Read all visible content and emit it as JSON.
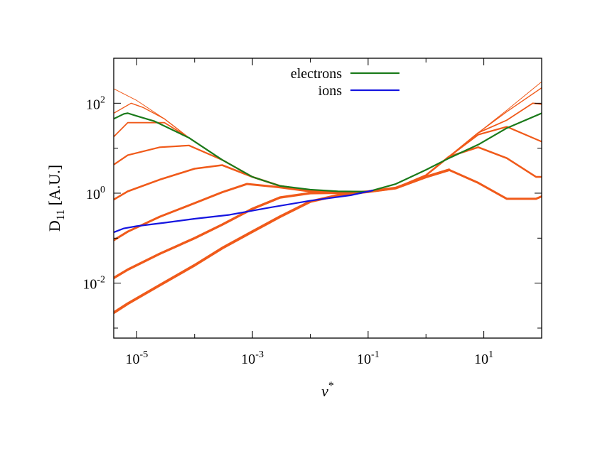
{
  "chart_data": {
    "type": "line",
    "xlabel": "ν*",
    "ylabel": "D11 [A.U.]",
    "xscale": "log",
    "yscale": "log",
    "xlim": [
      4e-06,
      100
    ],
    "ylim": [
      0.0006,
      1000
    ],
    "grid": false,
    "legend_position": "top-center",
    "x_ticks": [
      {
        "value": 1e-05,
        "base": "10",
        "exp": "-5"
      },
      {
        "value": 0.001,
        "base": "10",
        "exp": "-3"
      },
      {
        "value": 0.1,
        "base": "10",
        "exp": "-1"
      },
      {
        "value": 10,
        "base": "10",
        "exp": "1"
      }
    ],
    "y_ticks": [
      {
        "value": 0.01,
        "base": "10",
        "exp": "-2"
      },
      {
        "value": 1,
        "base": "10",
        "exp": "0"
      },
      {
        "value": 100,
        "base": "10",
        "exp": "2"
      }
    ],
    "series": [
      {
        "name": "electrons",
        "color": "#1a7a1a",
        "width": 2.2,
        "points": [
          [
            4e-06,
            45
          ],
          [
            6e-06,
            58
          ],
          [
            7e-06,
            60
          ],
          [
            1e-05,
            52
          ],
          [
            2e-05,
            40
          ],
          [
            8e-05,
            17
          ],
          [
            0.0003,
            5.5
          ],
          [
            0.001,
            2.3
          ],
          [
            0.003,
            1.45
          ],
          [
            0.01,
            1.2
          ],
          [
            0.03,
            1.1
          ],
          [
            0.1,
            1.08
          ],
          [
            0.3,
            1.6
          ],
          [
            1,
            3.3
          ],
          [
            2.5,
            6.0
          ],
          [
            8,
            12
          ],
          [
            25,
            28
          ],
          [
            100,
            60
          ]
        ]
      },
      {
        "name": "ions",
        "color": "#1515e0",
        "width": 2.2,
        "points": [
          [
            4e-06,
            0.135
          ],
          [
            6e-06,
            0.165
          ],
          [
            1e-05,
            0.185
          ],
          [
            3e-05,
            0.22
          ],
          [
            0.0001,
            0.27
          ],
          [
            0.0004,
            0.33
          ],
          [
            0.002,
            0.48
          ],
          [
            0.01,
            0.68
          ],
          [
            0.05,
            0.9
          ],
          [
            0.12,
            1.15
          ]
        ]
      },
      {
        "name": "",
        "color": "#f05a1a",
        "width": 1.0,
        "points": [
          [
            4e-06,
            210
          ],
          [
            1e-05,
            115
          ],
          [
            3e-05,
            45
          ],
          [
            8e-05,
            17
          ],
          [
            0.0003,
            5.5
          ],
          [
            0.001,
            2.3
          ],
          [
            0.003,
            1.45
          ],
          [
            0.01,
            1.15
          ],
          [
            0.03,
            1.08
          ],
          [
            0.1,
            1.08
          ],
          [
            0.3,
            1.3
          ],
          [
            1,
            2.5
          ],
          [
            2.5,
            6.5
          ],
          [
            8,
            22
          ],
          [
            25,
            70
          ],
          [
            100,
            300
          ]
        ]
      },
      {
        "name": "",
        "color": "#f05a1a",
        "width": 1.4,
        "points": [
          [
            4e-06,
            60
          ],
          [
            8e-06,
            100
          ],
          [
            1.3e-05,
            80
          ],
          [
            3e-05,
            45
          ],
          [
            8e-05,
            17
          ],
          [
            0.0003,
            5.5
          ],
          [
            0.001,
            2.3
          ],
          [
            0.003,
            1.45
          ],
          [
            0.01,
            1.15
          ],
          [
            0.03,
            1.08
          ],
          [
            0.1,
            1.08
          ],
          [
            0.3,
            1.3
          ],
          [
            1,
            2.5
          ],
          [
            2.5,
            6.5
          ],
          [
            8,
            22
          ],
          [
            25,
            65
          ],
          [
            100,
            220
          ]
        ]
      },
      {
        "name": "",
        "color": "#f05a1a",
        "width": 1.8,
        "points": [
          [
            4e-06,
            18
          ],
          [
            7e-06,
            37
          ],
          [
            3e-05,
            37
          ],
          [
            8e-05,
            17
          ],
          [
            0.0003,
            5.5
          ],
          [
            0.001,
            2.3
          ],
          [
            0.003,
            1.45
          ],
          [
            0.01,
            1.15
          ],
          [
            0.03,
            1.08
          ],
          [
            0.1,
            1.08
          ],
          [
            0.3,
            1.3
          ],
          [
            1,
            2.5
          ],
          [
            2.5,
            6.5
          ],
          [
            8,
            22
          ],
          [
            25,
            42
          ],
          [
            70,
            100
          ],
          [
            100,
            95
          ]
        ]
      },
      {
        "name": "",
        "color": "#f05a1a",
        "width": 2.2,
        "points": [
          [
            4e-06,
            4.3
          ],
          [
            7e-06,
            7.0
          ],
          [
            2.5e-05,
            10.5
          ],
          [
            8e-05,
            11.5
          ],
          [
            0.0003,
            5.5
          ],
          [
            0.001,
            2.3
          ],
          [
            0.003,
            1.45
          ],
          [
            0.01,
            1.15
          ],
          [
            0.03,
            1.08
          ],
          [
            0.1,
            1.08
          ],
          [
            0.3,
            1.3
          ],
          [
            1,
            2.5
          ],
          [
            2.5,
            6.5
          ],
          [
            8,
            20
          ],
          [
            25,
            30
          ],
          [
            100,
            14
          ]
        ]
      },
      {
        "name": "",
        "color": "#f05a1a",
        "width": 2.6,
        "points": [
          [
            4e-06,
            0.72
          ],
          [
            7e-06,
            1.1
          ],
          [
            2.5e-05,
            2.0
          ],
          [
            0.0001,
            3.5
          ],
          [
            0.0003,
            4.2
          ],
          [
            0.001,
            2.3
          ],
          [
            0.003,
            1.45
          ],
          [
            0.01,
            1.15
          ],
          [
            0.03,
            1.08
          ],
          [
            0.1,
            1.08
          ],
          [
            0.3,
            1.3
          ],
          [
            1,
            2.5
          ],
          [
            2.5,
            6.5
          ],
          [
            8,
            10.5
          ],
          [
            25,
            6.0
          ],
          [
            80,
            2.3
          ],
          [
            100,
            2.3
          ]
        ]
      },
      {
        "name": "",
        "color": "#f05a1a",
        "width": 3.0,
        "points": [
          [
            4e-06,
            0.09
          ],
          [
            7e-06,
            0.14
          ],
          [
            2.5e-05,
            0.3
          ],
          [
            0.0001,
            0.6
          ],
          [
            0.0003,
            1.05
          ],
          [
            0.0008,
            1.6
          ],
          [
            0.003,
            1.35
          ],
          [
            0.01,
            1.1
          ],
          [
            0.03,
            1.05
          ],
          [
            0.1,
            1.08
          ],
          [
            0.3,
            1.3
          ],
          [
            1,
            2.3
          ],
          [
            2.5,
            3.3
          ],
          [
            8,
            1.7
          ],
          [
            25,
            0.75
          ],
          [
            80,
            0.75
          ],
          [
            100,
            0.85
          ]
        ]
      },
      {
        "name": "",
        "color": "#f05a1a",
        "width": 3.4,
        "points": [
          [
            4e-06,
            0.013
          ],
          [
            7e-06,
            0.02
          ],
          [
            2.5e-05,
            0.045
          ],
          [
            0.0001,
            0.1
          ],
          [
            0.0003,
            0.2
          ],
          [
            0.001,
            0.45
          ],
          [
            0.003,
            0.8
          ],
          [
            0.01,
            1.0
          ],
          [
            0.03,
            1.02
          ],
          [
            0.1,
            1.08
          ],
          [
            0.3,
            1.3
          ],
          [
            1,
            2.3
          ],
          [
            2.5,
            3.3
          ]
        ]
      },
      {
        "name": "",
        "color": "#f05a1a",
        "width": 3.8,
        "points": [
          [
            4e-06,
            0.0022
          ],
          [
            7e-06,
            0.0035
          ],
          [
            2.5e-05,
            0.009
          ],
          [
            0.0001,
            0.025
          ],
          [
            0.0003,
            0.06
          ],
          [
            0.001,
            0.14
          ],
          [
            0.003,
            0.3
          ],
          [
            0.01,
            0.65
          ],
          [
            0.03,
            0.9
          ],
          [
            0.1,
            1.08
          ],
          [
            0.3,
            1.3
          ],
          [
            1,
            2.3
          ],
          [
            2.5,
            3.3
          ]
        ]
      }
    ]
  }
}
